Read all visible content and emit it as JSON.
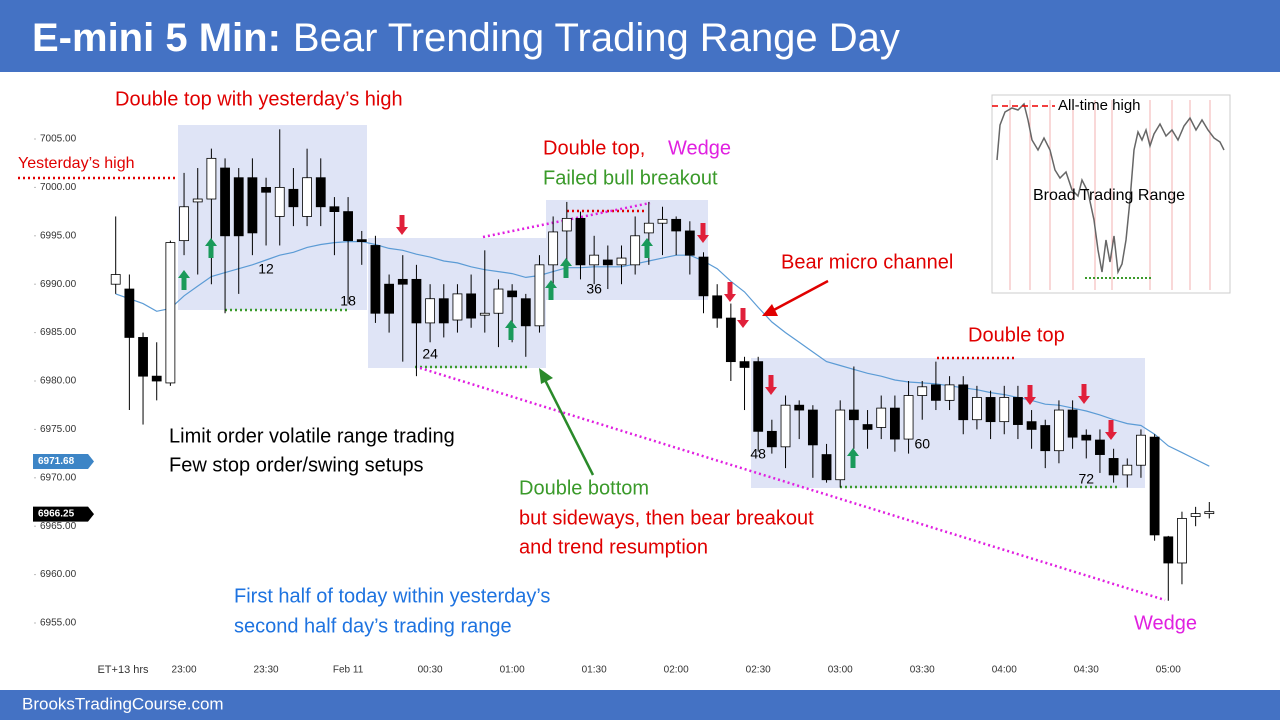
{
  "header": {
    "title_bold": "E-mini 5 Min:",
    "title": "Bear Trending Trading Range Day"
  },
  "chart_data": {
    "type": "candlestick",
    "x_axis_label": "ET+13 hrs",
    "categories": [
      null,
      null,
      null,
      null,
      null,
      "23:00",
      null,
      null,
      null,
      null,
      null,
      "23:30",
      null,
      null,
      null,
      null,
      null,
      "Feb 11",
      null,
      null,
      null,
      null,
      null,
      "00:30",
      null,
      null,
      null,
      null,
      null,
      "01:00",
      null,
      null,
      null,
      null,
      null,
      "01:30",
      null,
      null,
      null,
      null,
      null,
      "02:00",
      null,
      null,
      null,
      null,
      null,
      "02:30",
      null,
      null,
      null,
      null,
      null,
      "03:00",
      null,
      null,
      null,
      null,
      null,
      "03:30",
      null,
      null,
      null,
      null,
      null,
      "04:00",
      null,
      null,
      null,
      null,
      null,
      "04:30",
      null,
      null,
      null,
      null,
      null,
      "05:00",
      null,
      null,
      null
    ],
    "open": [
      6990,
      6989.5,
      6984.5,
      6980.5,
      6979.8,
      6994.5,
      6998.5,
      6998.8,
      7002,
      7001,
      7001,
      7000,
      6997,
      6999.8,
      6997,
      7001,
      6998,
      6997.5,
      6994.6,
      6994,
      6990,
      6990.5,
      6990.5,
      6986,
      6988.5,
      6986.3,
      6989,
      6986.8,
      6987,
      6989.3,
      6988.5,
      6985.7,
      6992,
      6995.5,
      6996.8,
      6992,
      6992.5,
      6992,
      6992,
      6995.3,
      6996.3,
      6996.7,
      6995.5,
      6992.8,
      6988.8,
      6986.5,
      6982,
      6982,
      6974.8,
      6973.2,
      6977.5,
      6977,
      6972.4,
      6969.8,
      6977,
      6975.5,
      6975.2,
      6977.2,
      6974,
      6978.5,
      6979.6,
      6978,
      6979.6,
      6976,
      6978.3,
      6975.8,
      6978.3,
      6975.8,
      6975.4,
      6972.8,
      6977,
      6974.4,
      6973.9,
      6972,
      6970.3,
      6971.3,
      6974.2,
      6963.9,
      6961.2,
      6966,
      6966.3
    ],
    "high": [
      6997,
      6991,
      6985,
      6984,
      6994.5,
      7001.5,
      7002,
      7004,
      7003,
      7002,
      7003,
      7001,
      7006,
      7002,
      7004,
      7003,
      6999,
      6999,
      6995.5,
      6995,
      6991,
      6993,
      6992,
      6990,
      6990,
      6990,
      6991,
      6993.5,
      6990.5,
      6990,
      6989,
      6993,
      6997,
      6998.5,
      6997.5,
      6995,
      6994,
      6994,
      6997,
      6998.5,
      6998,
      6997,
      6996.5,
      6993.3,
      6990,
      6988,
      6982.5,
      6982.5,
      6976,
      6978.5,
      6978,
      6977.5,
      6973.5,
      6978,
      6981.5,
      6977,
      6978.5,
      6978.5,
      6980,
      6980,
      6982,
      6980.5,
      6980.5,
      6979.5,
      6979,
      6979.5,
      6979.5,
      6977,
      6976,
      6978,
      6978,
      6975,
      6975,
      6973,
      6972,
      6975,
      6974.5,
      6964,
      6966.5,
      6967,
      6967.5
    ],
    "low": [
      6989,
      6977,
      6975.5,
      6978,
      6979.5,
      6993,
      6991,
      6990,
      6987,
      6989,
      6993,
      6994,
      6994,
      6996,
      6996,
      6996,
      6993,
      6988,
      6992,
      6986,
      6985,
      6982,
      6980.5,
      6984,
      6984.5,
      6985,
      6985.5,
      6985,
      6983.5,
      6984,
      6982.5,
      6985,
      6990,
      6992,
      6990.5,
      6990,
      6989.5,
      6990,
      6991,
      6992,
      6993,
      6993,
      6991,
      6987,
      6985.5,
      6980,
      6977,
      6972.7,
      6972.5,
      6971,
      6974,
      6970,
      6969.5,
      6969,
      6973,
      6973,
      6974,
      6972.7,
      6972.5,
      6976,
      6977,
      6977,
      6974.5,
      6975,
      6974,
      6974.5,
      6974,
      6973,
      6971,
      6971.5,
      6973,
      6972,
      6970.5,
      6969.5,
      6969,
      6970,
      6963.5,
      6957.3,
      6959,
      6965,
      6965.8
    ],
    "close": [
      6991,
      6984.5,
      6980.5,
      6980,
      6994.3,
      6998,
      6998.8,
      7003,
      6995,
      6995,
      6995.3,
      6999.5,
      7000,
      6998,
      7001,
      6998,
      6997.5,
      6994.5,
      6994.4,
      6987,
      6987,
      6990,
      6986,
      6988.5,
      6986,
      6989,
      6986.5,
      6987,
      6989.5,
      6988.7,
      6985.7,
      6992,
      6995.4,
      6996.8,
      6992,
      6993,
      6992,
      6992.7,
      6995,
      6996.3,
      6996.7,
      6995.5,
      6993,
      6988.8,
      6986.5,
      6982,
      6981.4,
      6974.8,
      6973.2,
      6977.5,
      6977,
      6973.4,
      6969.8,
      6977,
      6976,
      6975,
      6977.2,
      6974,
      6978.5,
      6979.4,
      6978,
      6979.6,
      6976,
      6978.3,
      6975.8,
      6978.3,
      6975.5,
      6975,
      6972.8,
      6977,
      6974.2,
      6973.9,
      6972.4,
      6970.3,
      6971.3,
      6974.4,
      6964.1,
      6961.2,
      6965.8,
      6966.3,
      6966.5
    ],
    "up_color": "#ffffff",
    "down_color": "#000000",
    "moving_average": {
      "color": "#5b9bd5",
      "values": [
        6989,
        6988.5,
        6988,
        6987.2,
        6987.5,
        6988.8,
        6989.8,
        6990.8,
        6991.2,
        6991.6,
        6992,
        6992.5,
        6993,
        6993.3,
        6993.8,
        6994.1,
        6994.3,
        6994.4,
        6994.4,
        6994.1,
        6993.7,
        6993.5,
        6993.1,
        6992.8,
        6992.4,
        6992.2,
        6991.8,
        6991.5,
        6991.3,
        6991.1,
        6990.7,
        6990.9,
        6991.3,
        6991.7,
        6991.7,
        6991.8,
        6991.8,
        6991.8,
        6992.1,
        6992.4,
        6992.7,
        6993,
        6993,
        6992.4,
        6991.6,
        6990.3,
        6989.2,
        6987.6,
        6986.1,
        6985,
        6984,
        6983,
        6982,
        6981.6,
        6981.2,
        6980.8,
        6980.5,
        6980.1,
        6979.9,
        6979.8,
        6979.7,
        6979.5,
        6979.3,
        6979.1,
        6978.8,
        6978.6,
        6978.3,
        6978,
        6977.6,
        6977.5,
        6977.2,
        6976.9,
        6976.5,
        6976,
        6975.6,
        6975.4,
        6974.5,
        6973.3,
        6972.6,
        6971.9,
        6971.2
      ]
    },
    "ylim": [
      6951,
      7009
    ],
    "yticks": [
      {
        "value": 6955,
        "label": "6955.00"
      },
      {
        "value": 6960,
        "label": "6960.00"
      },
      {
        "value": 6965,
        "label": "6965.00"
      },
      {
        "value": 6970,
        "label": "6970.00"
      },
      {
        "value": 6975,
        "label": "6975.00"
      },
      {
        "value": 6980,
        "label": "6980.00"
      },
      {
        "value": 6985,
        "label": "6985.00"
      },
      {
        "value": 6990,
        "label": "6990.00"
      },
      {
        "value": 6995,
        "label": "6995.00"
      },
      {
        "value": 7000,
        "label": "7000.00"
      },
      {
        "value": 7005,
        "label": "7005.00"
      }
    ],
    "price_tags": [
      6971.68,
      6966.25
    ],
    "price_tag_colors": [
      "#3d85c6",
      "#000000"
    ],
    "bar_labels": [
      12,
      18,
      24,
      36,
      48,
      60,
      72
    ],
    "annotations": [
      {
        "text": "Double top with yesterday’s high",
        "color": "#e00000"
      },
      {
        "text": "Yesterday’s high",
        "color": "#e00000"
      },
      {
        "text": "Double top,",
        "color": "#e00000"
      },
      {
        "text": "Wedge",
        "color": "#e020e0"
      },
      {
        "text": "Failed bull breakout",
        "color": "#3a9a2a"
      },
      {
        "text": "Bear micro channel",
        "color": "#e00000"
      },
      {
        "text": "Double top",
        "color": "#e00000"
      },
      {
        "text": "Limit order volatile range trading",
        "color": "#000000"
      },
      {
        "text": "Few stop order/swing setups",
        "color": "#000000"
      },
      {
        "text": "Double bottom",
        "color": "#3a9a2a"
      },
      {
        "text": "but sideways, then bear breakout",
        "color": "#e00000"
      },
      {
        "text": "and trend resumption",
        "color": "#e00000"
      },
      {
        "text": "First half of today within yesterday’s",
        "color": "#1e73e0"
      },
      {
        "text": "second half day’s trading range",
        "color": "#1e73e0"
      },
      {
        "text": "Wedge",
        "color": "#e020e0"
      }
    ]
  },
  "inset": {
    "legend": "All-time high",
    "label": "Broad Trading Range"
  },
  "footer": "BrooksTradingCourse.com"
}
